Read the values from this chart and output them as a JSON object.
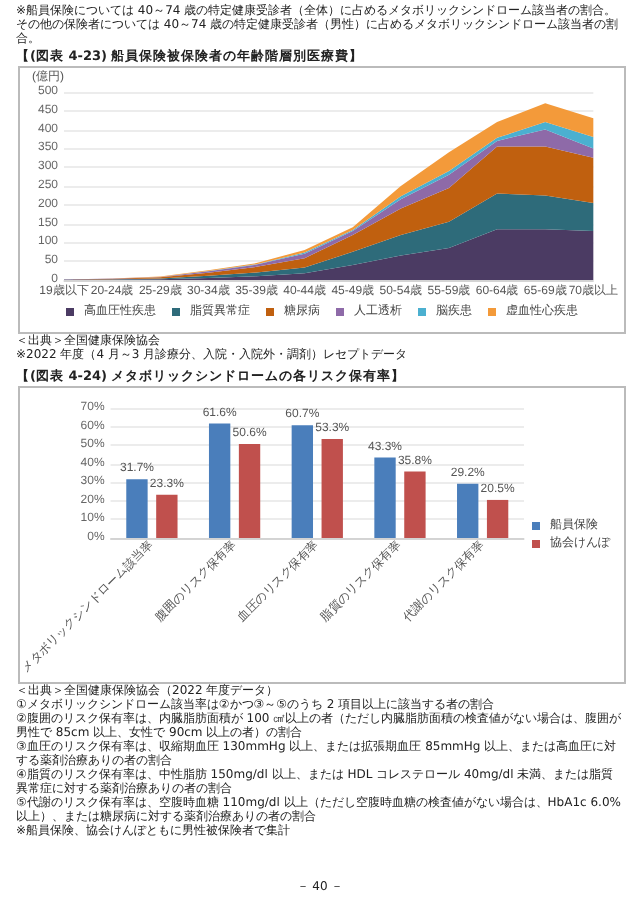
{
  "chart_data": [
    {
      "type": "area",
      "stacked": true,
      "title": "【(図表 4-23) 船員保険被保険者の年齢階層別医療費】",
      "ylabel": "(億円)",
      "categories": [
        "19歳以下",
        "20-24歳",
        "25-29歳",
        "30-34歳",
        "35-39歳",
        "40-44歳",
        "45-49歳",
        "50-54歳",
        "55-59歳",
        "60-64歳",
        "65-69歳",
        "70歳以上"
      ],
      "series": [
        {
          "name": "高血圧性疾患",
          "color": "#4b3b63",
          "values": [
            1,
            1,
            2,
            5,
            10,
            18,
            40,
            65,
            85,
            135,
            135,
            130
          ]
        },
        {
          "name": "脂質異常症",
          "color": "#2e6b7a",
          "values": [
            0,
            1,
            2,
            6,
            10,
            15,
            35,
            55,
            70,
            95,
            90,
            75
          ]
        },
        {
          "name": "糖尿病",
          "color": "#c0600f",
          "values": [
            0,
            1,
            3,
            8,
            15,
            25,
            45,
            70,
            90,
            125,
            130,
            120
          ]
        },
        {
          "name": "人工透析",
          "color": "#8e6aa8",
          "values": [
            0,
            1,
            1,
            4,
            6,
            12,
            10,
            25,
            35,
            15,
            45,
            25
          ]
        },
        {
          "name": "脳疾患",
          "color": "#4bb0d0",
          "values": [
            0,
            0,
            0,
            1,
            1,
            3,
            3,
            8,
            10,
            8,
            20,
            30
          ]
        },
        {
          "name": "虚血性心疾患",
          "color": "#f39a3a",
          "values": [
            0,
            0,
            1,
            2,
            3,
            7,
            7,
            27,
            50,
            42,
            50,
            50
          ]
        }
      ],
      "ylim": [
        0,
        500
      ],
      "yticks": [
        0,
        50,
        100,
        150,
        200,
        250,
        300,
        350,
        400,
        450,
        500
      ],
      "grid": "y",
      "legend": "bottom",
      "marker": "none",
      "annotations": [
        "※船員保険については 40～74 歳の特定健康受診者（全体）に占めるメタボリックシンドローム該当者の割合。",
        "その他の保険者については 40～74 歳の特定健康受診者（男性）に占めるメタボリックシンドローム該当者の割合。",
        "＜出典＞全国健康保険協会",
        "※2022 年度（4 月～3 月診療分、入院・入院外・調剤）レセプトデータ"
      ]
    },
    {
      "type": "bar",
      "title": "【(図表 4-24) メタボリックシンドロームの各リスク保有率】",
      "categories": [
        "メタボリックシンドローム該当率",
        "腹囲のリスク保有率",
        "血圧のリスク保有率",
        "脂質のリスク保有率",
        "代謝のリスク保有率"
      ],
      "series": [
        {
          "name": "船員保険",
          "color": "#4a7ebb",
          "values": [
            31.7,
            61.6,
            60.7,
            43.3,
            29.2
          ]
        },
        {
          "name": "協会けんぽ",
          "color": "#c0504d",
          "values": [
            23.3,
            50.6,
            53.3,
            35.8,
            20.5
          ]
        }
      ],
      "ylim": [
        0,
        70
      ],
      "yticks": [
        {
          "value": 0,
          "label": "0%"
        },
        {
          "value": 10,
          "label": "10%"
        },
        {
          "value": 20,
          "label": "20%"
        },
        {
          "value": 30,
          "label": "30%"
        },
        {
          "value": 40,
          "label": "40%"
        },
        {
          "value": 50,
          "label": "50%"
        },
        {
          "value": 60,
          "label": "60%"
        },
        {
          "value": 70,
          "label": "70%"
        }
      ],
      "grid": "y",
      "legend": "right",
      "value_labels": [
        [
          "31.7%",
          "61.6%",
          "60.7%",
          "43.3%",
          "29.2%"
        ],
        [
          "23.3%",
          "50.6%",
          "53.3%",
          "35.8%",
          "20.5%"
        ]
      ],
      "annotations": [
        "＜出典＞全国健康保険協会（2022 年度データ）",
        "①メタボリックシンドローム該当率は②かつ③～⑤のうち 2 項目以上に該当する者の割合",
        "②腹囲のリスク保有率は、内臓脂肪面積が 100 ㎠以上の者（ただし内臓脂肪面積の検査値がない場合は、腹囲が男性で 85cm 以上、女性で 90cm 以上の者）の割合",
        "③血圧のリスク保有率は、収縮期血圧 130mmHg 以上、または拡張期血圧 85mmHg 以上、または高血圧に対する薬剤治療ありの者の割合",
        "④脂質のリスク保有率は、中性脂肪 150mg/dl 以上、または HDL コレステロール 40mg/dl 未満、または脂質異常症に対する薬剤治療ありの者の割合",
        "⑤代謝のリスク保有率は、空腹時血糖 110mg/dl 以上（ただし空腹時血糖の検査値がない場合は、HbA1c 6.0% 以上）、または糖尿病に対する薬剤治療ありの者の割合",
        "※船員保険、協会けんぽともに男性被保険者で集計",
        "－ 40 －"
      ]
    }
  ]
}
